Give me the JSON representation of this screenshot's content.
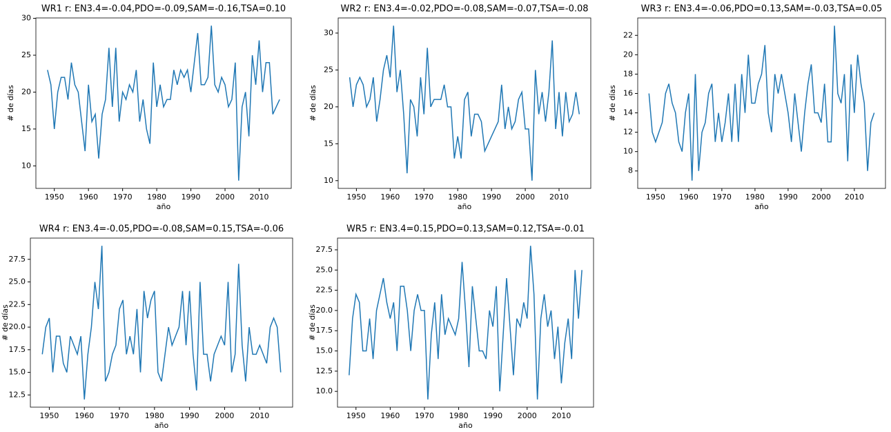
{
  "chart_data": [
    {
      "type": "line",
      "title": "WR1 r: EN3.4=-0.04,PDO=-0.09,SAM=-0.16,TSA=0.10",
      "x_label": "año",
      "y_label": "# de días",
      "color": "#1f77b4",
      "x": [
        1948,
        1949,
        1950,
        1951,
        1952,
        1953,
        1954,
        1955,
        1956,
        1957,
        1958,
        1959,
        1960,
        1961,
        1962,
        1963,
        1964,
        1965,
        1966,
        1967,
        1968,
        1969,
        1970,
        1971,
        1972,
        1973,
        1974,
        1975,
        1976,
        1977,
        1978,
        1979,
        1980,
        1981,
        1982,
        1983,
        1984,
        1985,
        1986,
        1987,
        1988,
        1989,
        1990,
        1991,
        1992,
        1993,
        1994,
        1995,
        1996,
        1997,
        1998,
        1999,
        2000,
        2001,
        2002,
        2003,
        2004,
        2005,
        2006,
        2007,
        2008,
        2009,
        2010,
        2011,
        2012,
        2013,
        2014,
        2015,
        2016
      ],
      "values": [
        23,
        21,
        15,
        20,
        22,
        22,
        19,
        24,
        21,
        20,
        16,
        12,
        21,
        16,
        17,
        11,
        17,
        19,
        26,
        18,
        26,
        16,
        20,
        19,
        21,
        20,
        23,
        16,
        19,
        15,
        13,
        24,
        18,
        21,
        18,
        19,
        19,
        23,
        21,
        23,
        22,
        23,
        20,
        24,
        28,
        21,
        21,
        22,
        29,
        21,
        20,
        22,
        21,
        18,
        19,
        24,
        8,
        18,
        20,
        14,
        25,
        21,
        27,
        20,
        24,
        24,
        17,
        18,
        19
      ],
      "xlim": [
        1944.6,
        2019.4
      ],
      "xticks": [
        1950,
        1960,
        1970,
        1980,
        1990,
        2000,
        2010
      ],
      "ylim": [
        6.95,
        30.05
      ],
      "yticks": [
        10,
        15,
        20,
        25,
        30
      ]
    },
    {
      "type": "line",
      "title": "WR2 r: EN3.4=-0.02,PDO=-0.08,SAM=-0.07,TSA=-0.08",
      "x_label": "año",
      "y_label": "# de días",
      "color": "#1f77b4",
      "x": [
        1948,
        1949,
        1950,
        1951,
        1952,
        1953,
        1954,
        1955,
        1956,
        1957,
        1958,
        1959,
        1960,
        1961,
        1962,
        1963,
        1964,
        1965,
        1966,
        1967,
        1968,
        1969,
        1970,
        1971,
        1972,
        1973,
        1974,
        1975,
        1976,
        1977,
        1978,
        1979,
        1980,
        1981,
        1982,
        1983,
        1984,
        1985,
        1986,
        1987,
        1988,
        1989,
        1990,
        1991,
        1992,
        1993,
        1994,
        1995,
        1996,
        1997,
        1998,
        1999,
        2000,
        2001,
        2002,
        2003,
        2004,
        2005,
        2006,
        2007,
        2008,
        2009,
        2010,
        2011,
        2012,
        2013,
        2014,
        2015,
        2016
      ],
      "values": [
        24,
        20,
        23,
        24,
        23,
        20,
        21,
        24,
        18,
        21,
        25,
        27,
        24,
        31,
        22,
        25,
        19,
        11,
        21,
        20,
        16,
        24,
        19,
        28,
        20,
        21,
        21,
        21,
        23,
        20,
        20,
        13,
        16,
        13,
        21,
        22,
        16,
        19,
        19,
        18,
        14,
        15,
        16,
        17,
        18,
        23,
        17,
        20,
        17,
        18,
        21,
        22,
        17,
        17,
        10,
        25,
        19,
        22,
        18,
        22,
        29,
        17,
        22,
        16,
        22,
        18,
        19,
        22,
        19
      ],
      "xlim": [
        1944.6,
        2019.4
      ],
      "xticks": [
        1950,
        1960,
        1970,
        1980,
        1990,
        2000,
        2010
      ],
      "ylim": [
        8.95,
        32.05
      ],
      "yticks": [
        10,
        15,
        20,
        25,
        30
      ]
    },
    {
      "type": "line",
      "title": "WR3 r: EN3.4=-0.06,PDO=0.13,SAM=-0.03,TSA=0.05",
      "x_label": "año",
      "y_label": "# de días",
      "color": "#1f77b4",
      "x": [
        1948,
        1949,
        1950,
        1951,
        1952,
        1953,
        1954,
        1955,
        1956,
        1957,
        1958,
        1959,
        1960,
        1961,
        1962,
        1963,
        1964,
        1965,
        1966,
        1967,
        1968,
        1969,
        1970,
        1971,
        1972,
        1973,
        1974,
        1975,
        1976,
        1977,
        1978,
        1979,
        1980,
        1981,
        1982,
        1983,
        1984,
        1985,
        1986,
        1987,
        1988,
        1989,
        1990,
        1991,
        1992,
        1993,
        1994,
        1995,
        1996,
        1997,
        1998,
        1999,
        2000,
        2001,
        2002,
        2003,
        2004,
        2005,
        2006,
        2007,
        2008,
        2009,
        2010,
        2011,
        2012,
        2013,
        2014,
        2015,
        2016
      ],
      "values": [
        16,
        12,
        11,
        12,
        13,
        16,
        17,
        15,
        14,
        11,
        10,
        14,
        16,
        7,
        18,
        8,
        12,
        13,
        16,
        17,
        11,
        14,
        11,
        13,
        16,
        11,
        17,
        11,
        18,
        14,
        20,
        15,
        15,
        17,
        18,
        21,
        14,
        12,
        18,
        16,
        18,
        16,
        14,
        11,
        16,
        13,
        10,
        14,
        17,
        19,
        14,
        14,
        13,
        17,
        11,
        11,
        23,
        16,
        15,
        18,
        9,
        19,
        14,
        20,
        17,
        15,
        8,
        13,
        14
      ],
      "xlim": [
        1944.6,
        2019.4
      ],
      "xticks": [
        1950,
        1960,
        1970,
        1980,
        1990,
        2000,
        2010
      ],
      "ylim": [
        6.2,
        23.8
      ],
      "yticks": [
        8,
        10,
        12,
        14,
        16,
        18,
        20,
        22
      ]
    },
    {
      "type": "line",
      "title": "WR4 r: EN3.4=-0.05,PDO=-0.08,SAM=0.15,TSA=-0.06",
      "x_label": "año",
      "y_label": "# de días",
      "color": "#1f77b4",
      "x": [
        1948,
        1949,
        1950,
        1951,
        1952,
        1953,
        1954,
        1955,
        1956,
        1957,
        1958,
        1959,
        1960,
        1961,
        1962,
        1963,
        1964,
        1965,
        1966,
        1967,
        1968,
        1969,
        1970,
        1971,
        1972,
        1973,
        1974,
        1975,
        1976,
        1977,
        1978,
        1979,
        1980,
        1981,
        1982,
        1983,
        1984,
        1985,
        1986,
        1987,
        1988,
        1989,
        1990,
        1991,
        1992,
        1993,
        1994,
        1995,
        1996,
        1997,
        1998,
        1999,
        2000,
        2001,
        2002,
        2003,
        2004,
        2005,
        2006,
        2007,
        2008,
        2009,
        2010,
        2011,
        2012,
        2013,
        2014,
        2015,
        2016
      ],
      "values": [
        17,
        20,
        21,
        15,
        19,
        19,
        16,
        15,
        19,
        18,
        17,
        19,
        12,
        17,
        20,
        25,
        22,
        29,
        14,
        15,
        17,
        18,
        22,
        23,
        17,
        19,
        17,
        22,
        15,
        24,
        21,
        23,
        24,
        15,
        14,
        17,
        20,
        18,
        19,
        20,
        24,
        18,
        24,
        17,
        13,
        25,
        17,
        17,
        14,
        17,
        18,
        19,
        18,
        25,
        15,
        17,
        27,
        18,
        14,
        20,
        17,
        17,
        18,
        17,
        16,
        20,
        21,
        20,
        15
      ],
      "xlim": [
        1944.6,
        2019.4
      ],
      "xticks": [
        1950,
        1960,
        1970,
        1980,
        1990,
        2000,
        2010
      ],
      "ylim": [
        11.15,
        29.85
      ],
      "yticks": [
        12.5,
        {
          "value": 15,
          "label": "15.0"
        },
        17.5,
        {
          "value": 20,
          "label": "20.0"
        },
        22.5,
        {
          "value": 25,
          "label": "25.0"
        },
        27.5
      ]
    },
    {
      "type": "line",
      "title": "WR5 r: EN3.4=0.15,PDO=0.13,SAM=0.12,TSA=-0.01",
      "x_label": "año",
      "y_label": "# de días",
      "color": "#1f77b4",
      "x": [
        1948,
        1949,
        1950,
        1951,
        1952,
        1953,
        1954,
        1955,
        1956,
        1957,
        1958,
        1959,
        1960,
        1961,
        1962,
        1963,
        1964,
        1965,
        1966,
        1967,
        1968,
        1969,
        1970,
        1971,
        1972,
        1973,
        1974,
        1975,
        1976,
        1977,
        1978,
        1979,
        1980,
        1981,
        1982,
        1983,
        1984,
        1985,
        1986,
        1987,
        1988,
        1989,
        1990,
        1991,
        1992,
        1993,
        1994,
        1995,
        1996,
        1997,
        1998,
        1999,
        2000,
        2001,
        2002,
        2003,
        2004,
        2005,
        2006,
        2007,
        2008,
        2009,
        2010,
        2011,
        2012,
        2013,
        2014,
        2015,
        2016
      ],
      "values": [
        12,
        19,
        22,
        21,
        15,
        15,
        19,
        14,
        20,
        22,
        24,
        21,
        19,
        21,
        15,
        23,
        23,
        20,
        15,
        20,
        22,
        20,
        20,
        9,
        17,
        21,
        14,
        22,
        17,
        19,
        18,
        17,
        19,
        26,
        20,
        13,
        23,
        19,
        15,
        15,
        14,
        20,
        18,
        23,
        10,
        17,
        24,
        18,
        12,
        19,
        18,
        21,
        19,
        28,
        22,
        9,
        19,
        22,
        18,
        20,
        14,
        18,
        11,
        16,
        19,
        14,
        25,
        19,
        25
      ],
      "xlim": [
        1944.6,
        2019.4
      ],
      "xticks": [
        1950,
        1960,
        1970,
        1980,
        1990,
        2000,
        2010
      ],
      "ylim": [
        8.05,
        28.95
      ],
      "yticks": [
        {
          "value": 10,
          "label": "10.0"
        },
        12.5,
        {
          "value": 15,
          "label": "15.0"
        },
        17.5,
        {
          "value": 20,
          "label": "20.0"
        },
        22.5,
        {
          "value": 25,
          "label": "25.0"
        },
        27.5
      ]
    }
  ]
}
